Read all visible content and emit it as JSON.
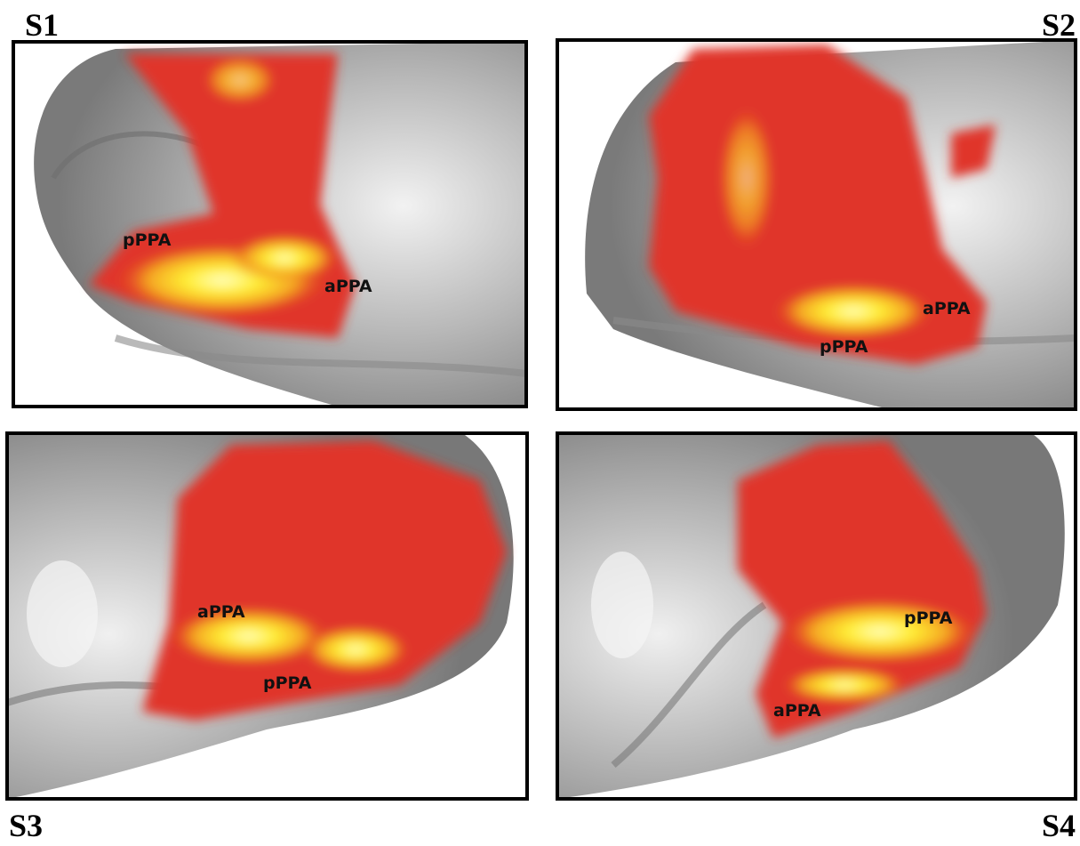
{
  "panels": [
    {
      "label": "S1",
      "annotations": [
        "pPPA",
        "aPPA"
      ]
    },
    {
      "label": "S2",
      "annotations": [
        "aPPA",
        "pPPA"
      ]
    },
    {
      "label": "S3",
      "annotations": [
        "aPPA",
        "pPPA"
      ]
    },
    {
      "label": "S4",
      "annotations": [
        "pPPA",
        "aPPA"
      ]
    }
  ]
}
